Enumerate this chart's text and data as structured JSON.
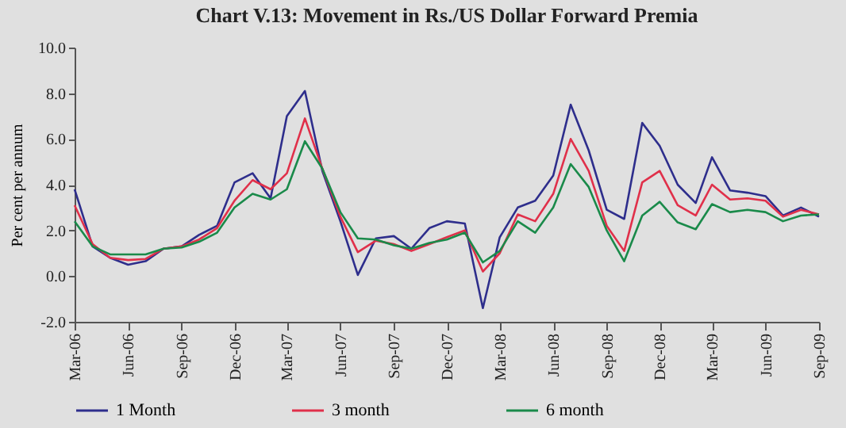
{
  "chart_data": {
    "type": "line",
    "title": "Chart V.13: Movement in Rs./US Dollar Forward Premia",
    "ylabel": "Per cent per annum",
    "x": [
      "2006-03",
      "2006-04",
      "2006-05",
      "2006-06",
      "2006-07",
      "2006-08",
      "2006-09",
      "2006-10",
      "2006-11",
      "2006-12",
      "2007-01",
      "2007-02",
      "2007-03",
      "2007-04",
      "2007-05",
      "2007-06",
      "2007-07",
      "2007-08",
      "2007-09",
      "2007-10",
      "2007-11",
      "2007-12",
      "2008-01",
      "2008-02",
      "2008-03",
      "2008-04",
      "2008-05",
      "2008-06",
      "2008-07",
      "2008-08",
      "2008-09",
      "2008-10",
      "2008-11",
      "2008-12",
      "2009-01",
      "2009-02",
      "2009-03",
      "2009-04",
      "2009-05",
      "2009-06",
      "2009-07",
      "2009-08",
      "2009-09"
    ],
    "series": [
      {
        "name": "1 Month",
        "color": "#2e2e8c",
        "values": [
          3.8,
          1.3,
          0.8,
          0.5,
          0.65,
          1.2,
          1.3,
          1.8,
          2.2,
          4.1,
          4.5,
          3.4,
          7.0,
          8.1,
          4.6,
          2.4,
          0.05,
          1.65,
          1.75,
          1.2,
          2.1,
          2.4,
          2.3,
          -1.4,
          1.7,
          3.0,
          3.3,
          4.4,
          7.5,
          5.5,
          2.9,
          2.5,
          6.7,
          5.7,
          4.0,
          3.2,
          5.2,
          3.75,
          3.65,
          3.5,
          2.65,
          3.0,
          2.6
        ]
      },
      {
        "name": "3 month",
        "color": "#e0304a",
        "values": [
          3.1,
          1.4,
          0.8,
          0.7,
          0.75,
          1.2,
          1.3,
          1.6,
          2.1,
          3.3,
          4.2,
          3.8,
          4.5,
          6.9,
          4.7,
          2.6,
          1.05,
          1.55,
          1.4,
          1.1,
          1.4,
          1.7,
          2.0,
          0.2,
          1.0,
          2.7,
          2.4,
          3.6,
          6.0,
          4.6,
          2.2,
          1.1,
          4.1,
          4.6,
          3.1,
          2.65,
          4.0,
          3.35,
          3.4,
          3.3,
          2.6,
          2.9,
          2.7
        ]
      },
      {
        "name": "6 month",
        "color": "#1a8a4a",
        "values": [
          2.4,
          1.3,
          0.95,
          0.95,
          0.95,
          1.2,
          1.25,
          1.5,
          1.9,
          3.0,
          3.6,
          3.35,
          3.8,
          5.9,
          4.7,
          2.8,
          1.65,
          1.6,
          1.35,
          1.2,
          1.45,
          1.6,
          1.9,
          0.6,
          1.1,
          2.4,
          1.9,
          3.0,
          4.9,
          3.9,
          2.0,
          0.65,
          2.65,
          3.25,
          2.35,
          2.05,
          3.15,
          2.8,
          2.9,
          2.8,
          2.4,
          2.65,
          2.7
        ]
      }
    ],
    "xlim": [
      "2006-03",
      "2009-09"
    ],
    "xticks": [
      {
        "value": "2006-03",
        "label": "Mar-06"
      },
      {
        "value": "2006-06",
        "label": "Jun-06"
      },
      {
        "value": "2006-09",
        "label": "Sep-06"
      },
      {
        "value": "2006-12",
        "label": "Dec-06"
      },
      {
        "value": "2007-03",
        "label": "Mar-07"
      },
      {
        "value": "2007-06",
        "label": "Jun-07"
      },
      {
        "value": "2007-09",
        "label": "Sep-07"
      },
      {
        "value": "2007-12",
        "label": "Dec-07"
      },
      {
        "value": "2008-03",
        "label": "Mar-08"
      },
      {
        "value": "2008-06",
        "label": "Jun-08"
      },
      {
        "value": "2008-09",
        "label": "Sep-08"
      },
      {
        "value": "2008-12",
        "label": "Dec-08"
      },
      {
        "value": "2009-03",
        "label": "Mar-09"
      },
      {
        "value": "2009-06",
        "label": "Jun-09"
      },
      {
        "value": "2009-09",
        "label": "Sep-09"
      }
    ],
    "ylim": [
      -2,
      10
    ],
    "yticks": [
      {
        "value": -2,
        "label": "-2.0"
      },
      {
        "value": 0,
        "label": "0.0"
      },
      {
        "value": 2,
        "label": "2.0"
      },
      {
        "value": 4,
        "label": "4.0"
      },
      {
        "value": 6,
        "label": "6.0"
      },
      {
        "value": 8,
        "label": "8.0"
      },
      {
        "value": 10,
        "label": "10.0"
      }
    ],
    "legend": "bottom",
    "marker": "none",
    "line_style": "solid"
  }
}
